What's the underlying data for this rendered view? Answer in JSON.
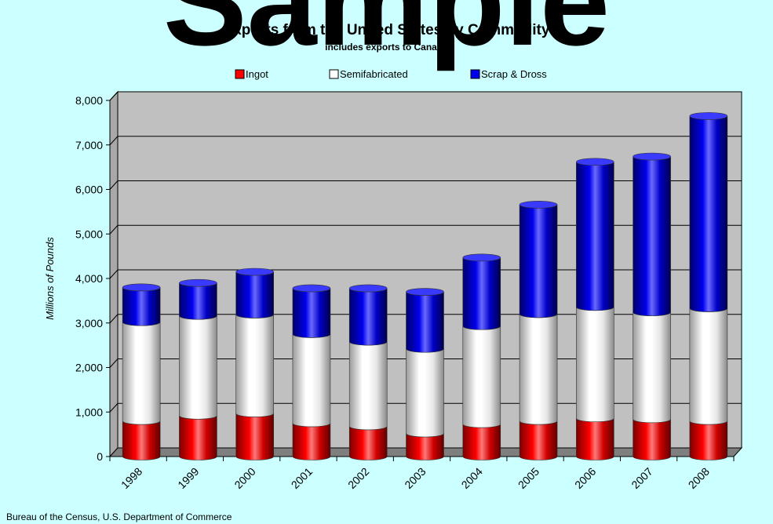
{
  "watermark": "Sample",
  "source": "Bureau of the Census, U.S. Department of Commerce",
  "chart_data": {
    "type": "bar",
    "stacked": true,
    "style": "3d-cylinder",
    "title": "Exports from the United States by Commodity",
    "subtitle": "includes exports to Canada",
    "xlabel": "",
    "ylabel": "Millions of Pounds",
    "ylim": [
      0,
      8000
    ],
    "yticks": [
      0,
      1000,
      2000,
      3000,
      4000,
      5000,
      6000,
      7000,
      8000
    ],
    "ytick_labels": [
      "0",
      "1,000",
      "2,000",
      "3,000",
      "4,000",
      "5,000",
      "6,000",
      "7,000",
      "8,000"
    ],
    "grid": true,
    "legend_position": "top",
    "categories": [
      "1998",
      "1999",
      "2000",
      "2001",
      "2002",
      "2003",
      "2004",
      "2005",
      "2006",
      "2007",
      "2008"
    ],
    "series": [
      {
        "name": "Ingot",
        "color": "#ff0000",
        "values": [
          800,
          920,
          970,
          750,
          680,
          520,
          730,
          800,
          860,
          840,
          800
        ]
      },
      {
        "name": "Semifabricated",
        "color": "#ffffff",
        "values": [
          2220,
          2240,
          2220,
          2000,
          1900,
          1900,
          2200,
          2400,
          2500,
          2400,
          2530
        ]
      },
      {
        "name": "Scrap & Dross",
        "color": "#0000ee",
        "values": [
          780,
          740,
          960,
          1030,
          1200,
          1280,
          1540,
          2460,
          3260,
          3500,
          4320
        ]
      }
    ]
  }
}
